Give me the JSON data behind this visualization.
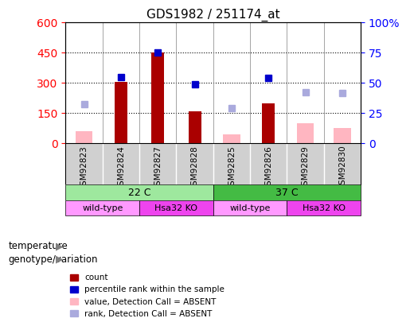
{
  "title": "GDS1982 / 251174_at",
  "samples": [
    "GSM92823",
    "GSM92824",
    "GSM92827",
    "GSM92828",
    "GSM92825",
    "GSM92826",
    "GSM92829",
    "GSM92830"
  ],
  "count_values": [
    null,
    305,
    450,
    160,
    null,
    200,
    null,
    null
  ],
  "count_absent_values": [
    60,
    null,
    null,
    null,
    45,
    null,
    100,
    75
  ],
  "rank_values": [
    null,
    330,
    450,
    295,
    null,
    325,
    null,
    null
  ],
  "rank_absent_values": [
    195,
    null,
    null,
    null,
    175,
    null,
    255,
    250
  ],
  "left_ylim": [
    0,
    600
  ],
  "right_ylim": [
    0,
    100
  ],
  "left_yticks": [
    0,
    150,
    300,
    450,
    600
  ],
  "right_yticks": [
    0,
    25,
    50,
    75,
    100
  ],
  "right_yticklabels": [
    "0",
    "25",
    "50",
    "75",
    "100%"
  ],
  "temperature_labels": [
    {
      "label": "22 C",
      "start": 0,
      "end": 4
    },
    {
      "label": "37 C",
      "start": 4,
      "end": 8
    }
  ],
  "genotype_labels": [
    {
      "label": "wild-type",
      "start": 0,
      "end": 2
    },
    {
      "label": "Hsa32 KO",
      "start": 2,
      "end": 4
    },
    {
      "label": "wild-type",
      "start": 4,
      "end": 6
    },
    {
      "label": "Hsa32 KO",
      "start": 6,
      "end": 8
    }
  ],
  "temp_color_22": "#9EE89E",
  "temp_color_37": "#44BB44",
  "genotype_color_wt": "#FF99FF",
  "genotype_color_ko": "#EE44EE",
  "bar_color_count": "#AA0000",
  "bar_color_absent": "#FFB6C1",
  "dot_color_rank": "#0000CC",
  "dot_color_rank_absent": "#AAAADD",
  "bar_width": 0.35,
  "legend_items": [
    {
      "label": "count",
      "color": "#AA0000"
    },
    {
      "label": "percentile rank within the sample",
      "color": "#0000CC"
    },
    {
      "label": "value, Detection Call = ABSENT",
      "color": "#FFB6C1"
    },
    {
      "label": "rank, Detection Call = ABSENT",
      "color": "#AAAADD"
    }
  ]
}
